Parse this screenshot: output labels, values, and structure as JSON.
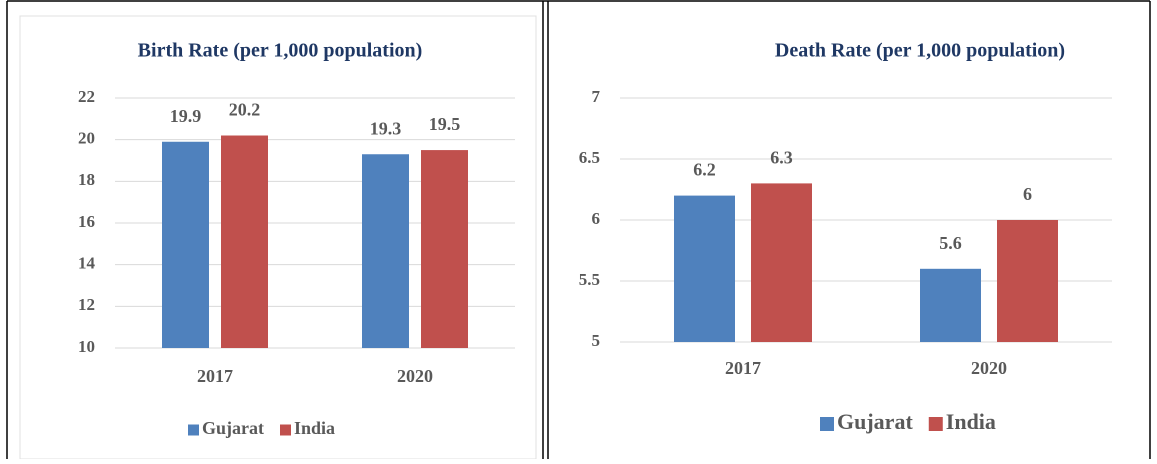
{
  "chart_data": [
    {
      "type": "bar",
      "title": "Birth Rate (per 1,000 population)",
      "categories": [
        "2017",
        "2020"
      ],
      "series": [
        {
          "name": "Gujarat",
          "color": "#4f81bd",
          "values": [
            19.9,
            19.3
          ]
        },
        {
          "name": "India",
          "color": "#c0504d",
          "values": [
            20.2,
            19.5
          ]
        }
      ],
      "ylim": [
        10,
        22
      ],
      "yticks": [
        10,
        12,
        14,
        16,
        18,
        20,
        22
      ],
      "grid": true,
      "legend": "bottom"
    },
    {
      "type": "bar",
      "title": "Death Rate (per 1,000 population)",
      "categories": [
        "2017",
        "2020"
      ],
      "series": [
        {
          "name": "Gujarat",
          "color": "#4f81bd",
          "values": [
            6.2,
            5.6
          ]
        },
        {
          "name": "India",
          "color": "#c0504d",
          "values": [
            6.3,
            6
          ]
        }
      ],
      "ylim": [
        5,
        7
      ],
      "yticks": [
        5,
        5.5,
        6,
        6.5,
        7
      ],
      "grid": true,
      "legend": "bottom"
    }
  ]
}
